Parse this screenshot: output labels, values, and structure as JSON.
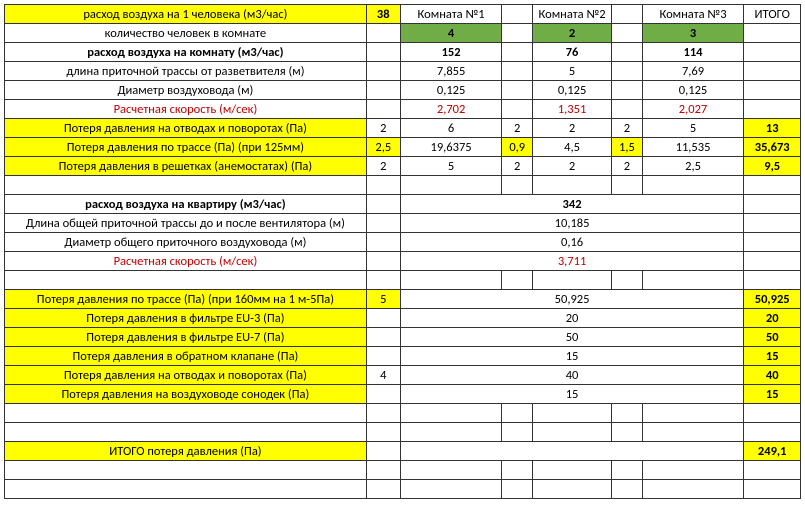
{
  "headers": {
    "per_person": "расход воздуха на 1 человека (м3/час)",
    "per_person_val": "38",
    "room1": "Комната №1",
    "room2": "Комната №2",
    "room3": "Комната №3",
    "total": "ИТОГО"
  },
  "rows": {
    "people_count": {
      "label": "количество человек в комнате",
      "r1": "4",
      "r2": "2",
      "r3": "3"
    },
    "per_room": {
      "label": "расход воздуха на комнату (м3/час)",
      "r1": "152",
      "r2": "76",
      "r3": "114"
    },
    "inlet_len": {
      "label": "длина приточной трассы от разветвителя (м)",
      "r1": "7,855",
      "r2": "5",
      "r3": "7,69"
    },
    "diameter": {
      "label": "Диаметр воздуховода (м)",
      "r1": "0,125",
      "r2": "0,125",
      "r3": "0,125"
    },
    "speed": {
      "label": "Расчетная скорость (м/сек)",
      "r1": "2,702",
      "r2": "1,351",
      "r3": "2,027"
    },
    "loss_turns": {
      "label": "Потеря давления на отводах и поворотах (Па)",
      "p": "2",
      "r1": "6",
      "c2": "2",
      "r2": "2",
      "c3": "2",
      "r3": "5",
      "tot": "13"
    },
    "loss_route": {
      "label": "Потеря давления по трассе (Па) (при 125мм)",
      "p": "2,5",
      "r1": "19,6375",
      "c2": "0,9",
      "r2": "4,5",
      "c3": "1,5",
      "r3": "11,535",
      "tot": "35,673"
    },
    "loss_grilles": {
      "label": "Потеря давления в решетках (анемостатах) (Па)",
      "p": "2",
      "r1": "5",
      "c2": "2",
      "r2": "2",
      "c3": "2",
      "r3": "2,5",
      "tot": "9,5"
    },
    "apt_flow": {
      "label": "расход воздуха на квартиру (м3/час)",
      "val": "342"
    },
    "common_len": {
      "label": "Длина общей приточной трассы до и после вентилятора (м)",
      "val": "10,185"
    },
    "common_dia": {
      "label": "Диаметр общего приточного воздуховода (м)",
      "val": "0,16"
    },
    "common_speed": {
      "label": "Расчетная скорость (м/сек)",
      "val": "3,711"
    },
    "loss_route160": {
      "label": "Потеря давления по трассе (Па) (при 160мм на 1 м-5Па)",
      "p": "5",
      "val": "50,925",
      "tot": "50,925"
    },
    "loss_eu3": {
      "label": "Потеря давления в фильтре EU-3 (Па)",
      "val": "20",
      "tot": "20"
    },
    "loss_eu7": {
      "label": "Потеря давления в фильтре EU-7 (Па)",
      "val": "50",
      "tot": "50"
    },
    "loss_valve": {
      "label": "Потеря давления в обратном клапане (Па)",
      "val": "15",
      "tot": "15"
    },
    "loss_turns2": {
      "label": "Потеря давления на отводах и поворотах (Па)",
      "p": "4",
      "val": "40",
      "tot": "40"
    },
    "loss_sonodek": {
      "label": "Потеря давления на воздуховоде сонодек (Па)",
      "val": "15",
      "tot": "15"
    },
    "total_loss": {
      "label": "ИТОГО потеря давления  (Па)",
      "tot": "249,1"
    }
  }
}
